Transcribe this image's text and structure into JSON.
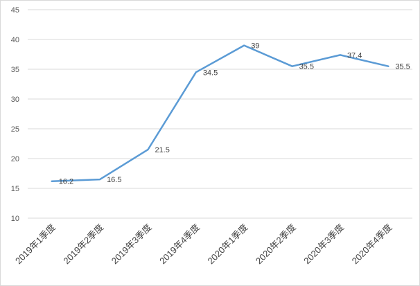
{
  "chart_data": {
    "type": "line",
    "title": "",
    "xlabel": "",
    "ylabel": "",
    "categories": [
      "2019年1季度",
      "2019年2季度",
      "2019年3季度",
      "2019年4季度",
      "2020年1季度",
      "2020年2季度",
      "2020年3季度",
      "2020年4季度"
    ],
    "series": [
      {
        "values": [
          16.2,
          16.5,
          21.5,
          34.5,
          39,
          35.5,
          37.4,
          35.5
        ],
        "labels": [
          "16.2",
          "16.5",
          "21.5",
          "34.5",
          "39",
          "35.5",
          "37.4",
          "35.5"
        ],
        "color": "#5b9bd5"
      }
    ],
    "ylim": [
      10,
      45
    ],
    "yticks": [
      "10",
      "15",
      "20",
      "25",
      "30",
      "35",
      "40",
      "45"
    ],
    "grid": true,
    "legend": "none"
  }
}
